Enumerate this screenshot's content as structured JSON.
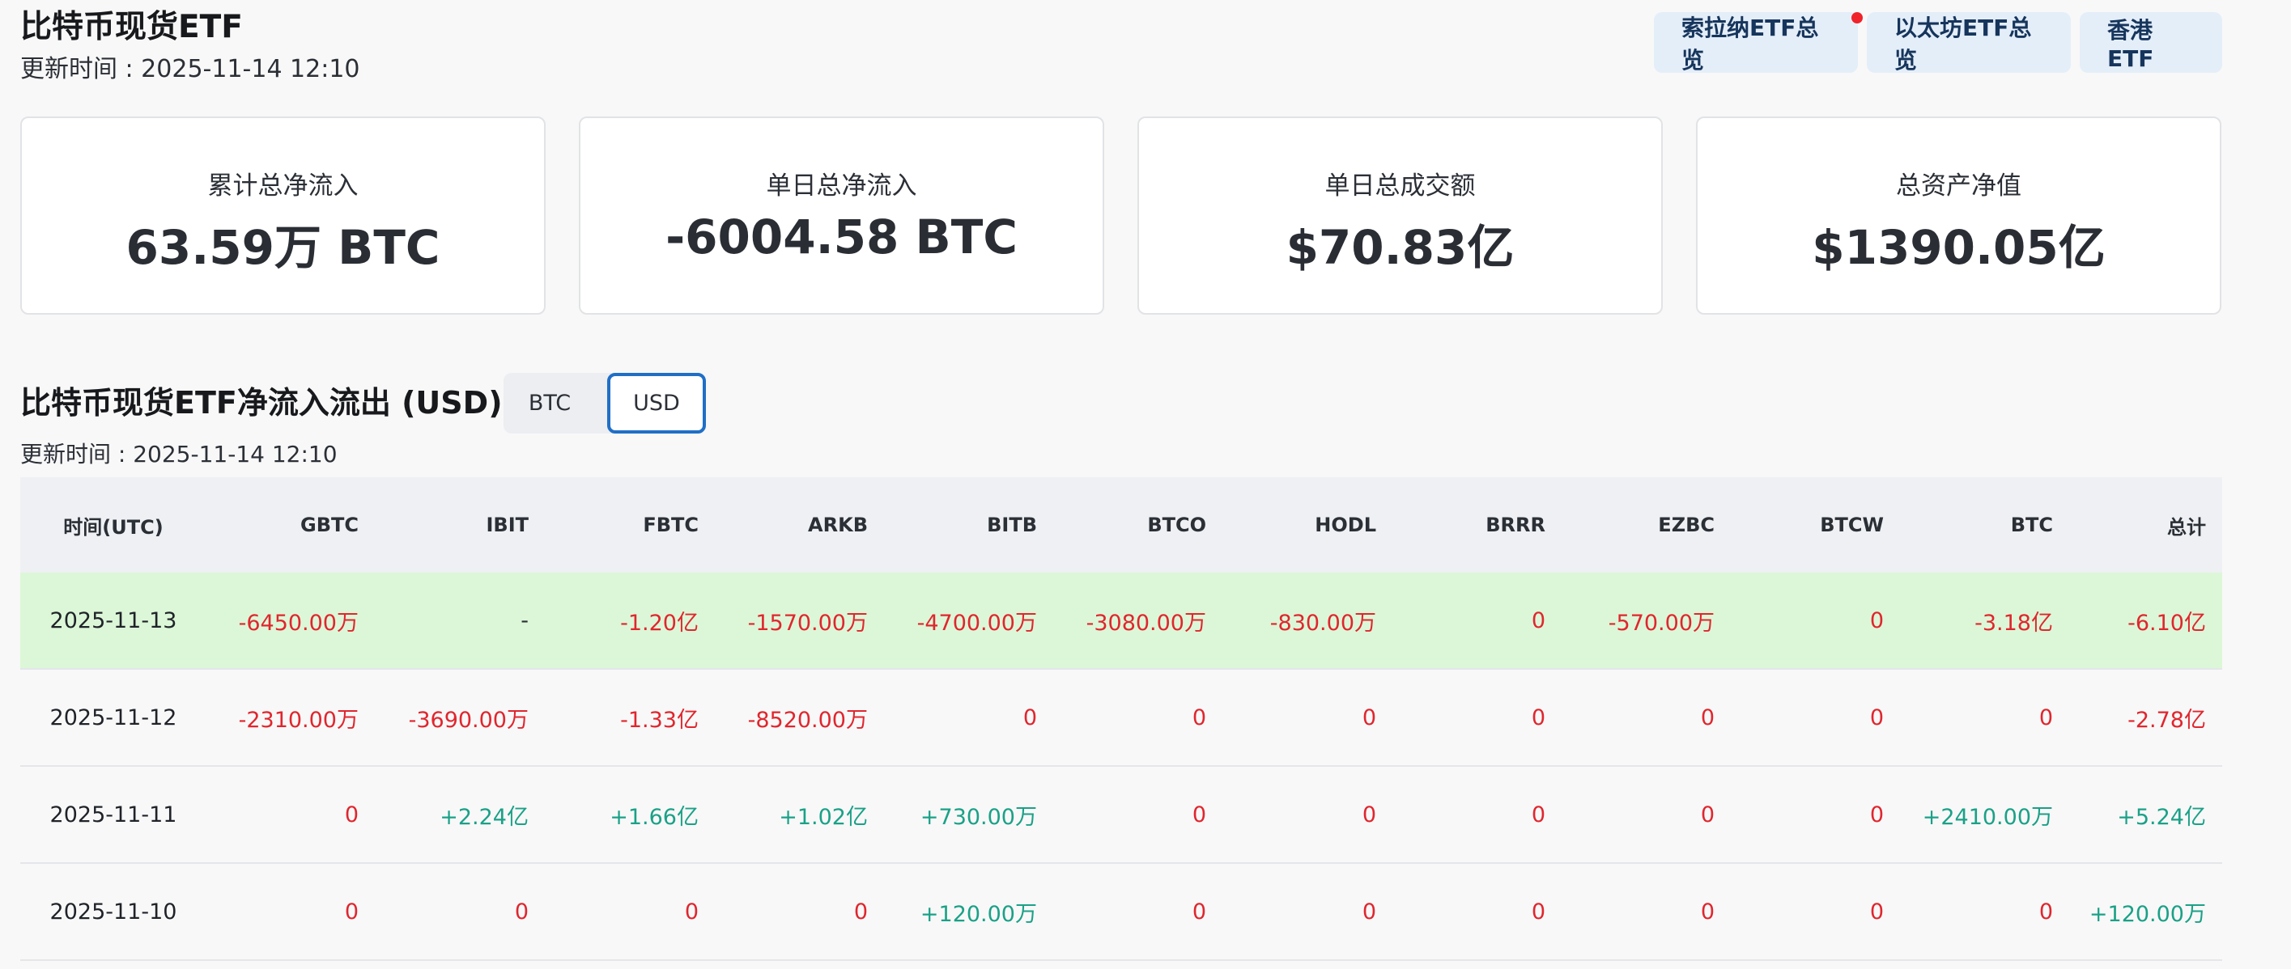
{
  "header": {
    "title": "比特币现货ETF",
    "updated": "更新时间 : 2025-11-14 12:10",
    "links": [
      {
        "label": "索拉纳ETF总览",
        "has_dot": true
      },
      {
        "label": "以太坊ETF总览",
        "has_dot": false
      },
      {
        "label": "香港 ETF",
        "has_dot": false
      }
    ]
  },
  "stats": [
    {
      "label": "累计总净流入",
      "value": "63.59万 BTC"
    },
    {
      "label": "单日总净流入",
      "value": "-6004.58 BTC"
    },
    {
      "label": "单日总成交额",
      "value": "$70.83亿"
    },
    {
      "label": "总资产净值",
      "value": "$1390.05亿"
    }
  ],
  "flows": {
    "title": "比特币现货ETF净流入流出 (USD)",
    "updated": "更新时间 : 2025-11-14 12:10",
    "toggle": {
      "options": [
        "BTC",
        "USD"
      ],
      "active": "USD"
    },
    "columns": [
      "时间(UTC)",
      "GBTC",
      "IBIT",
      "FBTC",
      "ARKB",
      "BITB",
      "BTCO",
      "HODL",
      "BRRR",
      "EZBC",
      "BTCW",
      "BTC",
      "总计"
    ],
    "rows": [
      {
        "highlight": true,
        "cells": [
          "2025-11-13",
          "-6450.00万",
          "-",
          "-1.20亿",
          "-1570.00万",
          "-4700.00万",
          "-3080.00万",
          "-830.00万",
          "0",
          "-570.00万",
          "0",
          "-3.18亿",
          "-6.10亿"
        ]
      },
      {
        "highlight": false,
        "cells": [
          "2025-11-12",
          "-2310.00万",
          "-3690.00万",
          "-1.33亿",
          "-8520.00万",
          "0",
          "0",
          "0",
          "0",
          "0",
          "0",
          "0",
          "-2.78亿"
        ]
      },
      {
        "highlight": false,
        "cells": [
          "2025-11-11",
          "0",
          "+2.24亿",
          "+1.66亿",
          "+1.02亿",
          "+730.00万",
          "0",
          "0",
          "0",
          "0",
          "0",
          "+2410.00万",
          "+5.24亿"
        ]
      },
      {
        "highlight": false,
        "cells": [
          "2025-11-10",
          "0",
          "0",
          "0",
          "0",
          "+120.00万",
          "0",
          "0",
          "0",
          "0",
          "0",
          "0",
          "+120.00万"
        ]
      }
    ],
    "colors": {
      "negative": "#e0262e",
      "positive": "#1aa187",
      "highlight_row": "#dcf7d7"
    }
  }
}
